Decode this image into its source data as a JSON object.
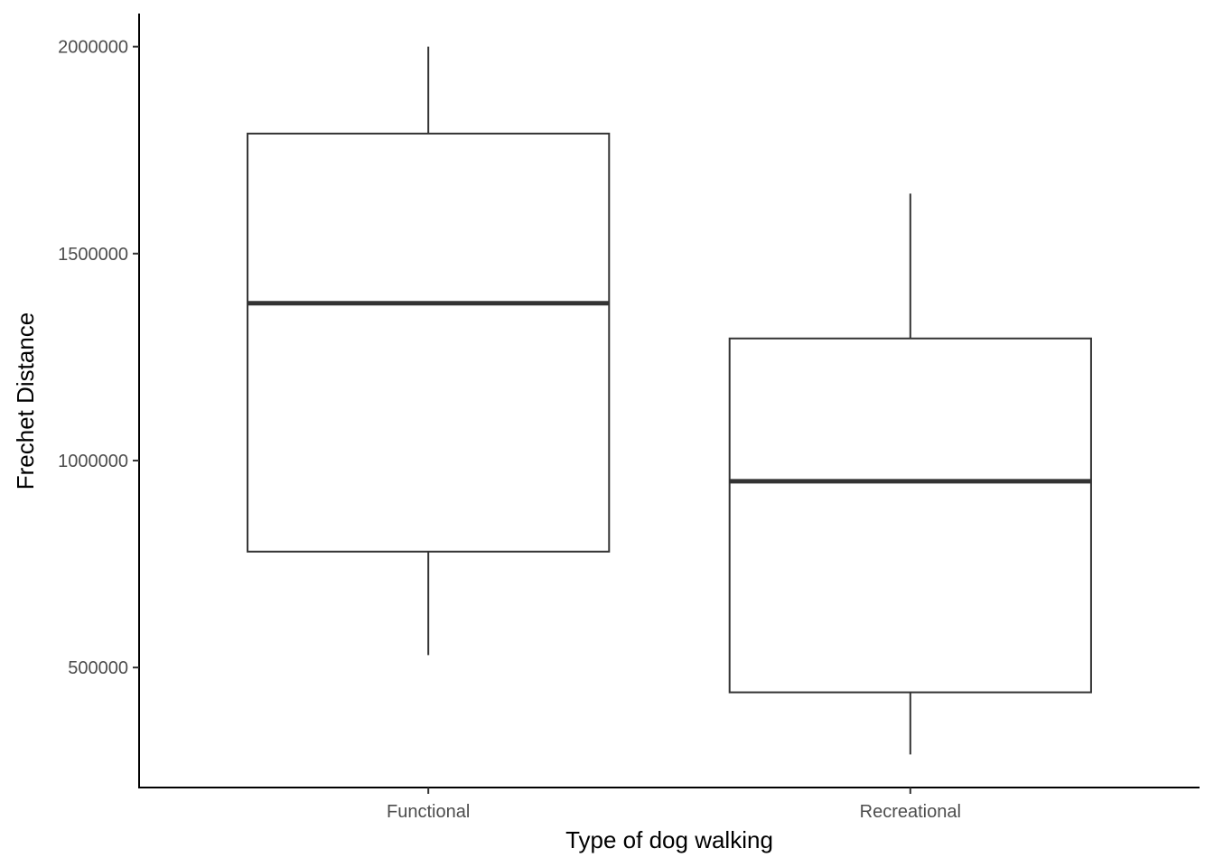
{
  "chart_data": {
    "type": "boxplot",
    "title": "",
    "xlabel": "Type of dog walking",
    "ylabel": "Frechet Distance",
    "categories": [
      "Functional",
      "Recreational"
    ],
    "boxes": [
      {
        "category": "Functional",
        "min": 530000,
        "q1": 780000,
        "median": 1380000,
        "q3": 1790000,
        "max": 2000000
      },
      {
        "category": "Recreational",
        "min": 290000,
        "q1": 440000,
        "median": 950000,
        "q3": 1295000,
        "max": 1645000
      }
    ],
    "ylim": [
      210000,
      2080000
    ],
    "yticks": [
      500000,
      1000000,
      1500000,
      2000000
    ],
    "ytick_labels": [
      "500000",
      "1000000",
      "1500000",
      "2000000"
    ],
    "grid": false,
    "legend": "none",
    "colors": {
      "box_stroke": "#333333",
      "box_fill": "#ffffff",
      "axis": "#000000",
      "tick_text": "#4d4d4d"
    }
  }
}
